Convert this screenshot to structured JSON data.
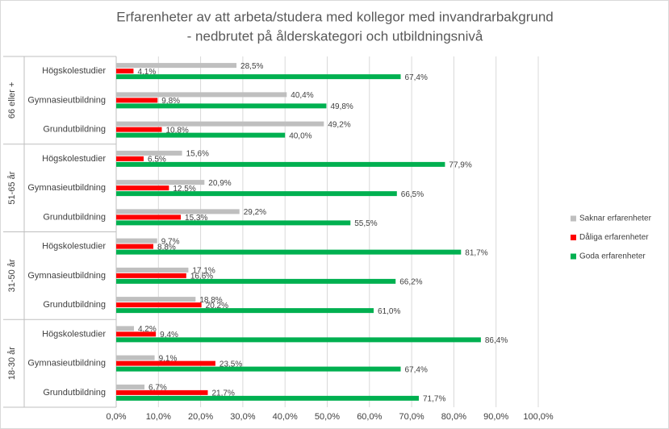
{
  "chart_data": {
    "type": "bar",
    "orientation": "horizontal",
    "title": [
      "Erfarenheter av att arbeta/studera med kollegor med invandrarbakgrund",
      "- nedbrutet på ålderskategori och utbildningsnivå"
    ],
    "groups": [
      "66 eller +",
      "51-65 år",
      "31-50 år",
      "18-30 år"
    ],
    "categories": [
      "Högskolestudier",
      "Gymnasieutbildning",
      "Grundutbildning",
      "Högskolestudier",
      "Gymnasieutbildning",
      "Grundutbildning",
      "Högskolestudier",
      "Gymnasieutbildning",
      "Grundutbildning",
      "Högskolestudier",
      "Gymnasieutbildning",
      "Grundutbildning"
    ],
    "series": [
      {
        "name": "Saknar erfarenheter",
        "color": "#bfbfbf",
        "values": [
          28.5,
          40.4,
          49.2,
          15.6,
          20.9,
          29.2,
          9.7,
          17.1,
          18.8,
          4.2,
          9.1,
          6.7
        ],
        "value_labels": [
          "28,5%",
          "40,4%",
          "49,2%",
          "15,6%",
          "20,9%",
          "29,2%",
          "9,7%",
          "17,1%",
          "18,8%",
          "4,2%",
          "9,1%",
          "6,7%"
        ]
      },
      {
        "name": "Dåliga erfarenheter",
        "color": "#ff0000",
        "values": [
          4.1,
          9.8,
          10.8,
          6.5,
          12.5,
          15.3,
          8.8,
          16.6,
          20.2,
          9.4,
          23.5,
          21.7
        ],
        "value_labels": [
          "4,1%",
          "9,8%",
          "10,8%",
          "6,5%",
          "12,5%",
          "15,3%",
          "8,8%",
          "16,6%",
          "20,2%",
          "9,4%",
          "23,5%",
          "21,7%"
        ]
      },
      {
        "name": "Goda erfarenheter",
        "color": "#00b050",
        "values": [
          67.4,
          49.8,
          40.0,
          77.9,
          66.5,
          55.5,
          81.7,
          66.2,
          61.0,
          86.4,
          67.4,
          71.7
        ],
        "value_labels": [
          "67,4%",
          "49,8%",
          "40,0%",
          "77,9%",
          "66,5%",
          "55,5%",
          "81,7%",
          "66,2%",
          "61,0%",
          "86,4%",
          "67,4%",
          "71,7%"
        ]
      }
    ],
    "xlim": [
      0,
      100
    ],
    "xticks": [
      {
        "value": 0,
        "label": "0,0%"
      },
      {
        "value": 10,
        "label": "10,0%"
      },
      {
        "value": 20,
        "label": "20,0%"
      },
      {
        "value": 30,
        "label": "30,0%"
      },
      {
        "value": 40,
        "label": "40,0%"
      },
      {
        "value": 50,
        "label": "50,0%"
      },
      {
        "value": 60,
        "label": "60,0%"
      },
      {
        "value": 70,
        "label": "70,0%"
      },
      {
        "value": 80,
        "label": "80,0%"
      },
      {
        "value": 90,
        "label": "90,0%"
      },
      {
        "value": 100,
        "label": "100,0%"
      }
    ],
    "grid": true,
    "legend": "right"
  }
}
